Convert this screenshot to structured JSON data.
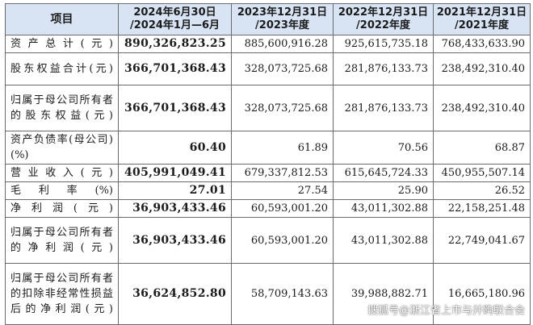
{
  "header": {
    "item": "项目",
    "col1": [
      "2024年6月30日",
      "/2024年1月—6月"
    ],
    "col2": [
      "2023年12月31日",
      "/2023年度"
    ],
    "col3": [
      "2022年12月31日",
      "/2022年度"
    ],
    "col4": [
      "2021年12月31日",
      "/2021年度"
    ]
  },
  "rows": [
    {
      "label": "资产总计(元)",
      "values": [
        "890,326,823.25",
        "885,600,916.28",
        "925,615,735.18",
        "768,433,633.90"
      ]
    },
    {
      "label": "股东权益合计(元)",
      "values": [
        "366,701,368.43",
        "328,073,725.68",
        "281,876,133.73",
        "238,492,310.40"
      ]
    },
    {
      "label": "归属于母公司所有者的股东权益(元)",
      "values": [
        "366,701,368.43",
        "328,073,725.68",
        "281,876,133.73",
        "238,492,310.40"
      ]
    },
    {
      "label": "资产负债率(母公司)(%)",
      "values": [
        "60.40",
        "61.89",
        "70.56",
        "68.87"
      ]
    },
    {
      "label": "营业收入(元)",
      "values": [
        "405,991,049.41",
        "679,337,812.53",
        "615,645,724.33",
        "450,955,507.14"
      ]
    },
    {
      "label": "毛利率(%)",
      "values": [
        "27.01",
        "27.54",
        "25.90",
        "26.52"
      ]
    },
    {
      "label": "净利润(元)",
      "values": [
        "36,903,433.46",
        "60,593,001.20",
        "43,011,302.88",
        "22,158,251.48"
      ]
    },
    {
      "label": "归属于母公司所有者的净利润(元)",
      "values": [
        "36,903,433.46",
        "60,593,001.20",
        "43,011,302.88",
        "22,749,041.67"
      ]
    },
    {
      "label": "归属于母公司所有者的扣除非经常性损益后的净利润(元)",
      "values": [
        "36,624,852.80",
        "58,709,143.63",
        "39,988,882.71",
        "16,665,180.96"
      ]
    }
  ],
  "watermark": "搜狐号@浙江省上市与并购联合会",
  "colors": {
    "header_bg": "#d8e4f4",
    "border": "#6b6b6b",
    "text": "#1b1b1b"
  }
}
